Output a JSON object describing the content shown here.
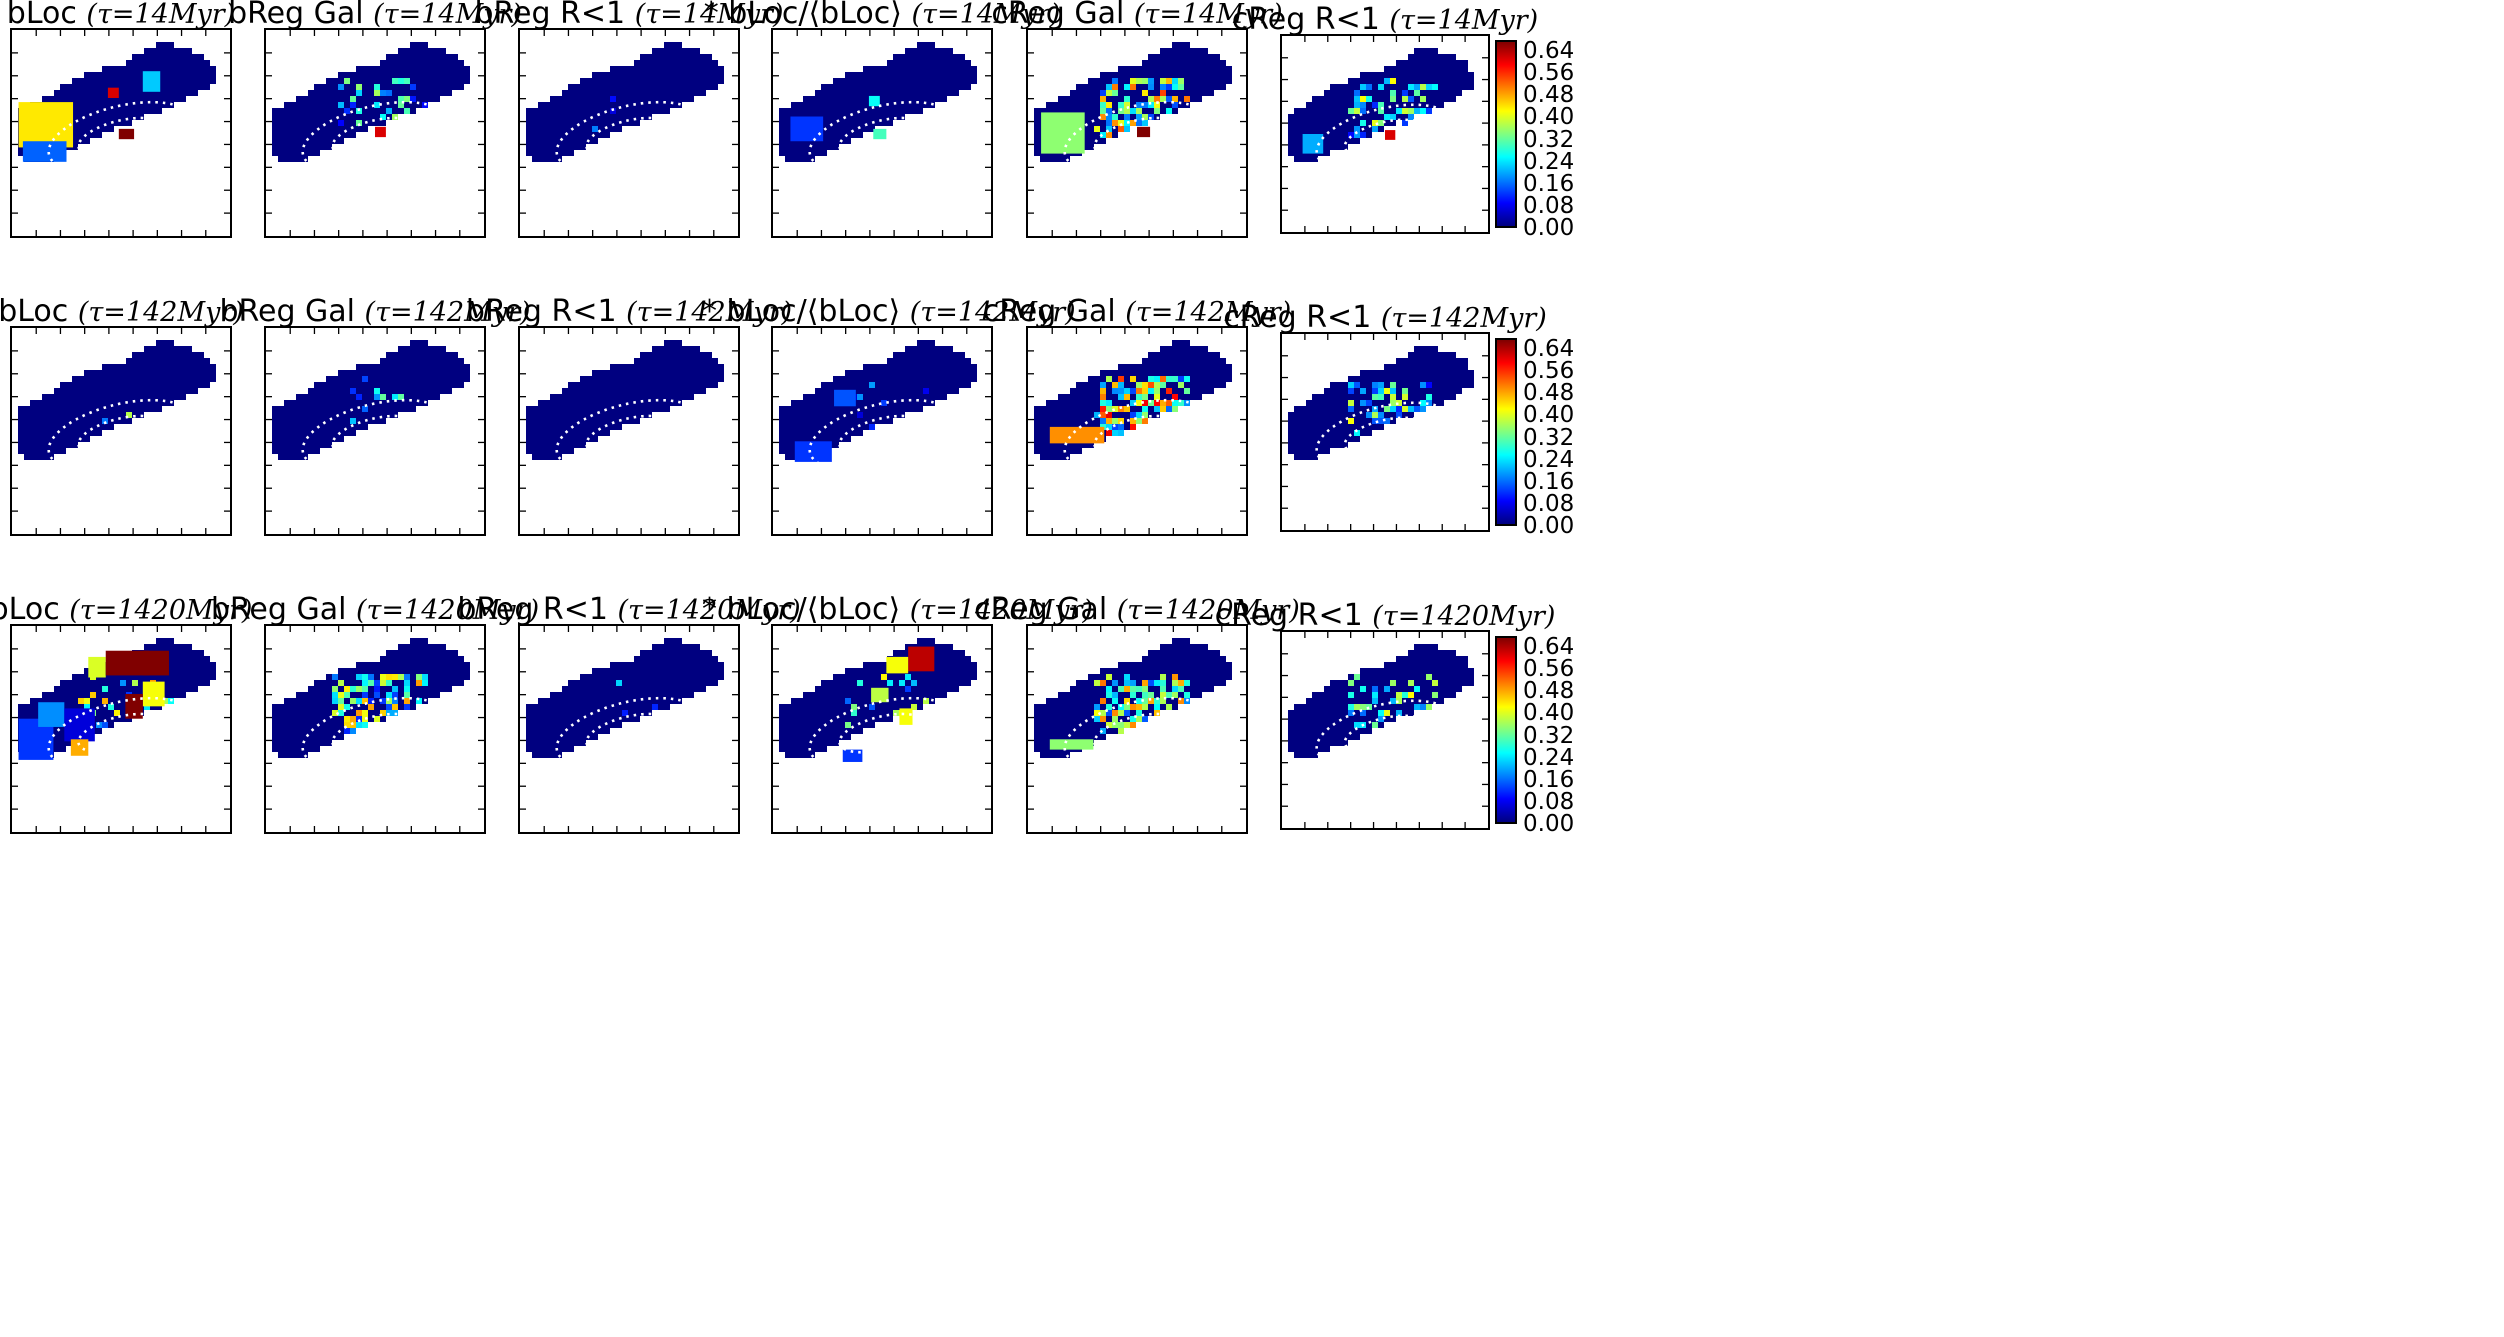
{
  "chart_data": {
    "type": "heatmap",
    "layout": {
      "rows": 3,
      "columns": 6
    },
    "colormap": "jet",
    "colorbar": {
      "min": 0.0,
      "max": 0.68,
      "ticks": [
        "0.64",
        "0.56",
        "0.48",
        "0.40",
        "0.32",
        "0.24",
        "0.16",
        "0.08",
        "0.00"
      ]
    },
    "titles": [
      [
        {
          "name": "bLoc",
          "tau": "(τ=14Myr)"
        },
        {
          "name": "bReg Gal",
          "tau": "(τ=14Myr)"
        },
        {
          "name": "bReg R<1",
          "tau": "(τ=14Myr)"
        },
        {
          "name": "* bLoc/⟨bLoc⟩",
          "tau": "(τ=14Myr)"
        },
        {
          "name": "cReg Gal",
          "tau": "(τ=14Myr)"
        },
        {
          "name": "cReg R<1",
          "tau": "(τ=14Myr)"
        }
      ],
      [
        {
          "name": "bLoc",
          "tau": "(τ=142Myr)"
        },
        {
          "name": "bReg Gal",
          "tau": "(τ=142Myr)"
        },
        {
          "name": "bReg R<1",
          "tau": "(τ=142Myr)"
        },
        {
          "name": "* bLoc/⟨bLoc⟩",
          "tau": "(τ=142Myr)"
        },
        {
          "name": "cReg Gal",
          "tau": "(τ=142Myr)"
        },
        {
          "name": "cReg R<1",
          "tau": "(τ=142Myr)"
        }
      ],
      [
        {
          "name": "bLoc",
          "tau": "(τ=1420Myr)"
        },
        {
          "name": "bReg Gal",
          "tau": "(τ=1420Myr)"
        },
        {
          "name": "bReg R<1",
          "tau": "(τ=1420Myr)"
        },
        {
          "name": "* bLoc/⟨bLoc⟩",
          "tau": "(τ=1420Myr)"
        },
        {
          "name": "cReg Gal",
          "tau": "(τ=1420Myr)"
        },
        {
          "name": "cReg R<1",
          "tau": "(τ=1420Myr)"
        }
      ]
    ],
    "panel_content": [
      [
        {
          "scatter": 0,
          "scatter_level": 0,
          "patches": [
            {
              "u": 0.03,
              "v": 0.35,
              "w": 0.25,
              "h": 0.22,
              "value": 0.44
            },
            {
              "u": 0.05,
              "v": 0.54,
              "w": 0.2,
              "h": 0.1,
              "value": 0.15
            },
            {
              "u": 0.6,
              "v": 0.2,
              "w": 0.08,
              "h": 0.1,
              "value": 0.22
            },
            {
              "u": 0.44,
              "v": 0.28,
              "w": 0.05,
              "h": 0.05,
              "value": 0.62
            },
            {
              "u": 0.49,
              "v": 0.48,
              "w": 0.07,
              "h": 0.05,
              "value": 0.68
            }
          ]
        },
        {
          "scatter": 40,
          "scatter_level": 0.3,
          "patches": [
            {
              "u": 0.5,
              "v": 0.47,
              "w": 0.05,
              "h": 0.05,
              "value": 0.62
            }
          ]
        },
        {
          "scatter": 3,
          "scatter_level": 0.2,
          "patches": []
        },
        {
          "scatter": 0,
          "scatter_level": 0,
          "patches": [
            {
              "u": 0.08,
              "v": 0.42,
              "w": 0.15,
              "h": 0.12,
              "value": 0.12
            },
            {
              "u": 0.46,
              "v": 0.48,
              "w": 0.06,
              "h": 0.05,
              "value": 0.3
            },
            {
              "u": 0.44,
              "v": 0.32,
              "w": 0.05,
              "h": 0.05,
              "value": 0.26
            }
          ]
        },
        {
          "scatter": 140,
          "scatter_level": 0.45,
          "patches": [
            {
              "u": 0.06,
              "v": 0.4,
              "w": 0.2,
              "h": 0.2,
              "value": 0.35
            },
            {
              "u": 0.5,
              "v": 0.47,
              "w": 0.06,
              "h": 0.05,
              "value": 0.68
            }
          ]
        },
        {
          "scatter": 90,
          "scatter_level": 0.35,
          "patches": [
            {
              "u": 0.1,
              "v": 0.5,
              "w": 0.1,
              "h": 0.1,
              "value": 0.2
            },
            {
              "u": 0.5,
              "v": 0.48,
              "w": 0.05,
              "h": 0.05,
              "value": 0.62
            }
          ]
        }
      ],
      [
        {
          "scatter": 2,
          "scatter_level": 0.6,
          "patches": []
        },
        {
          "scatter": 15,
          "scatter_level": 0.3,
          "patches": []
        },
        {
          "scatter": 0,
          "scatter_level": 0,
          "patches": []
        },
        {
          "scatter": 10,
          "scatter_level": 0.2,
          "patches": [
            {
              "u": 0.1,
              "v": 0.55,
              "w": 0.17,
              "h": 0.1,
              "value": 0.12
            },
            {
              "u": 0.28,
              "v": 0.3,
              "w": 0.1,
              "h": 0.08,
              "value": 0.14
            }
          ]
        },
        {
          "scatter": 170,
          "scatter_level": 0.5,
          "patches": [
            {
              "u": 0.1,
              "v": 0.48,
              "w": 0.25,
              "h": 0.08,
              "value": 0.5
            }
          ]
        },
        {
          "scatter": 80,
          "scatter_level": 0.35,
          "patches": []
        }
      ],
      [
        {
          "scatter": 30,
          "scatter_level": 0.4,
          "patches": [
            {
              "u": 0.03,
              "v": 0.45,
              "w": 0.16,
              "h": 0.2,
              "value": 0.12
            },
            {
              "u": 0.12,
              "v": 0.37,
              "w": 0.12,
              "h": 0.12,
              "value": 0.18
            },
            {
              "u": 0.24,
              "v": 0.4,
              "w": 0.14,
              "h": 0.16,
              "value": 0.06
            },
            {
              "u": 0.35,
              "v": 0.15,
              "w": 0.08,
              "h": 0.1,
              "value": 0.4
            },
            {
              "u": 0.43,
              "v": 0.12,
              "w": 0.2,
              "h": 0.12,
              "value": 0.68
            },
            {
              "u": 0.6,
              "v": 0.12,
              "w": 0.12,
              "h": 0.12,
              "value": 0.68
            },
            {
              "u": 0.6,
              "v": 0.27,
              "w": 0.1,
              "h": 0.12,
              "value": 0.42
            },
            {
              "u": 0.52,
              "v": 0.33,
              "w": 0.08,
              "h": 0.12,
              "value": 0.68
            },
            {
              "u": 0.27,
              "v": 0.55,
              "w": 0.08,
              "h": 0.08,
              "value": 0.48
            }
          ]
        },
        {
          "scatter": 120,
          "scatter_level": 0.4,
          "patches": []
        },
        {
          "scatter": 3,
          "scatter_level": 0.2,
          "patches": []
        },
        {
          "scatter": 20,
          "scatter_level": 0.35,
          "patches": [
            {
              "u": 0.62,
              "v": 0.1,
              "w": 0.12,
              "h": 0.12,
              "value": 0.64
            },
            {
              "u": 0.52,
              "v": 0.15,
              "w": 0.1,
              "h": 0.08,
              "value": 0.42
            },
            {
              "u": 0.45,
              "v": 0.3,
              "w": 0.08,
              "h": 0.07,
              "value": 0.38
            },
            {
              "u": 0.58,
              "v": 0.4,
              "w": 0.06,
              "h": 0.08,
              "value": 0.42
            },
            {
              "u": 0.32,
              "v": 0.6,
              "w": 0.09,
              "h": 0.06,
              "value": 0.12
            }
          ]
        },
        {
          "scatter": 150,
          "scatter_level": 0.45,
          "patches": [
            {
              "u": 0.1,
              "v": 0.55,
              "w": 0.2,
              "h": 0.05,
              "value": 0.35
            }
          ]
        },
        {
          "scatter": 60,
          "scatter_level": 0.35,
          "patches": []
        }
      ]
    ]
  }
}
